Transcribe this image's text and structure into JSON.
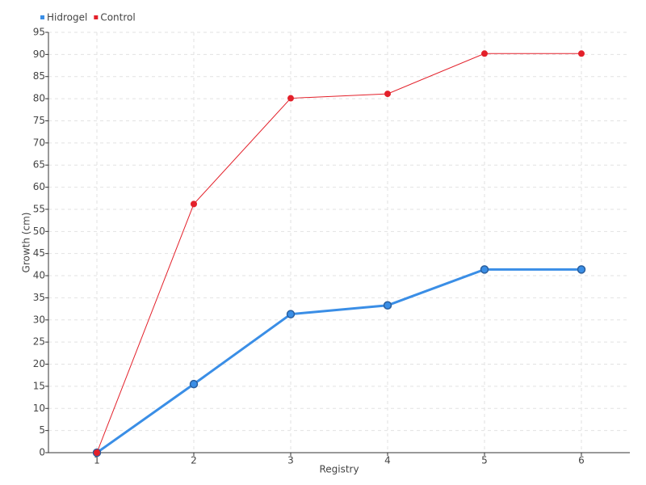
{
  "chart_data": {
    "type": "line",
    "x_label": "Registry",
    "y_label": "Growth (cm)",
    "categories": [
      "1",
      "2",
      "3",
      "4",
      "5",
      "6"
    ],
    "series": [
      {
        "name": "Hidrogel",
        "color": "#3a8ee6",
        "values": [
          0,
          15.5,
          31.3,
          33.3,
          41.4,
          41.4
        ]
      },
      {
        "name": "Control",
        "color": "#e3202a",
        "values": [
          0,
          56.2,
          80.1,
          81.1,
          90.2,
          90.2
        ]
      }
    ],
    "ylim": [
      0,
      95
    ],
    "yticks": [
      0,
      5,
      10,
      15,
      20,
      25,
      30,
      35,
      40,
      45,
      50,
      55,
      60,
      65,
      70,
      75,
      80,
      85,
      90,
      95
    ],
    "grid": true,
    "legend": "top-left"
  }
}
